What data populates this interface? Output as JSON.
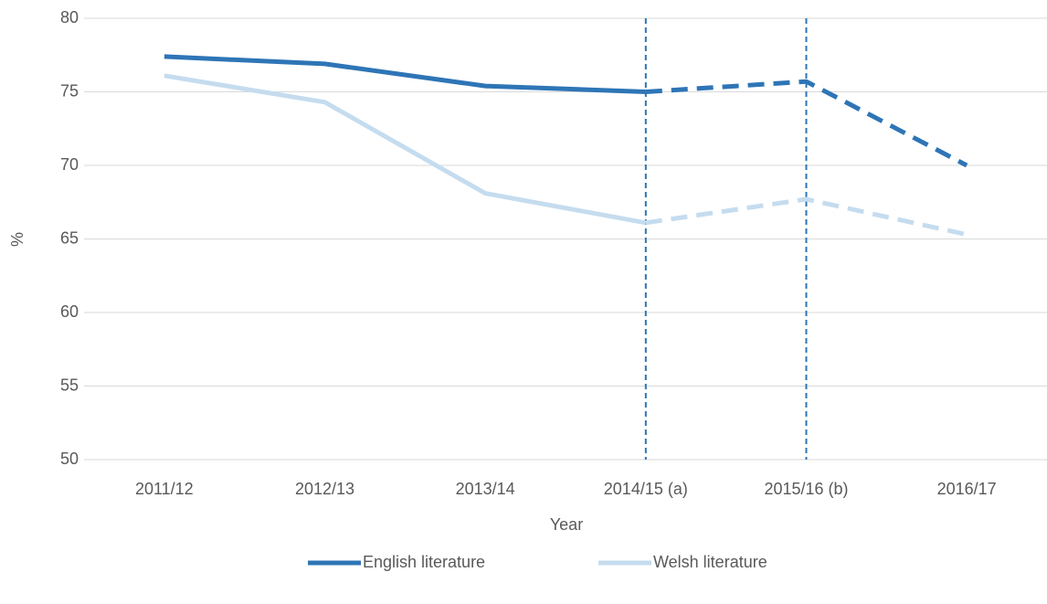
{
  "chart_data": {
    "type": "line",
    "x_label": "Year",
    "y_label": "%",
    "categories": [
      "2011/12",
      "2012/13",
      "2013/14",
      "2014/15 (a)",
      "2015/16 (b)",
      "2016/17"
    ],
    "series": [
      {
        "name": "English literature",
        "color": "#2e75b6",
        "values": [
          77.4,
          76.9,
          75.4,
          75.0,
          75.7,
          70.0
        ]
      },
      {
        "name": "Welsh literature",
        "color": "#c5dcef",
        "values": [
          76.1,
          74.3,
          68.1,
          66.1,
          67.7,
          65.3
        ]
      }
    ],
    "ylim": [
      50,
      80
    ],
    "yticks": [
      50,
      55,
      60,
      65,
      70,
      75,
      80
    ],
    "grid": true,
    "dashed_from": "2014/15 (a)",
    "vlines": [
      "2014/15 (a)",
      "2015/16 (b)"
    ],
    "vline_color": "#2e75b6",
    "legend": "bottom"
  }
}
